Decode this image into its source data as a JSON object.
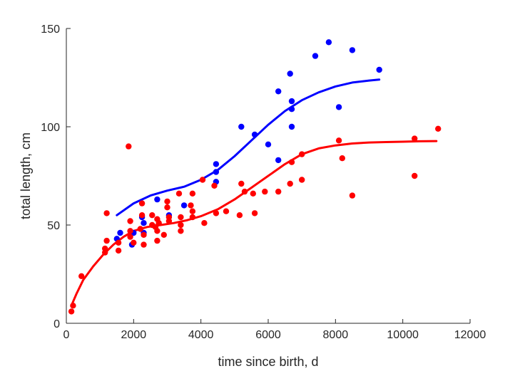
{
  "chart_data": {
    "type": "scatter",
    "title": "",
    "xlabel": "time since birth, d",
    "ylabel": "total length, cm",
    "xlim": [
      0,
      12000
    ],
    "ylim": [
      0,
      150
    ],
    "xticks": [
      0,
      2000,
      4000,
      6000,
      8000,
      10000,
      12000
    ],
    "yticks": [
      0,
      50,
      100,
      150
    ],
    "grid": false,
    "legend": "none",
    "series": [
      {
        "color": "#0000ff",
        "points": [
          [
            1500,
            43
          ],
          [
            1600,
            46
          ],
          [
            1950,
            40
          ],
          [
            2000,
            46
          ],
          [
            2250,
            54
          ],
          [
            2300,
            51
          ],
          [
            2300,
            46
          ],
          [
            2700,
            63
          ],
          [
            3050,
            55
          ],
          [
            3500,
            60
          ],
          [
            4450,
            81
          ],
          [
            4450,
            77
          ],
          [
            4450,
            72
          ],
          [
            5200,
            100
          ],
          [
            5600,
            96
          ],
          [
            6000,
            91
          ],
          [
            6300,
            118
          ],
          [
            6300,
            83
          ],
          [
            6650,
            127
          ],
          [
            6700,
            113
          ],
          [
            6700,
            109
          ],
          [
            6700,
            100
          ],
          [
            7400,
            136
          ],
          [
            7800,
            143
          ],
          [
            8100,
            110
          ],
          [
            8500,
            139
          ],
          [
            9300,
            129
          ]
        ],
        "fit": [
          [
            1500,
            55
          ],
          [
            2000,
            61
          ],
          [
            2500,
            65
          ],
          [
            3000,
            67.5
          ],
          [
            3500,
            69.5
          ],
          [
            4000,
            73
          ],
          [
            4500,
            78
          ],
          [
            5000,
            85
          ],
          [
            5500,
            93
          ],
          [
            6000,
            101
          ],
          [
            6500,
            108
          ],
          [
            7000,
            113.5
          ],
          [
            7500,
            117.5
          ],
          [
            8000,
            120.5
          ],
          [
            8500,
            122.5
          ],
          [
            9000,
            123.5
          ],
          [
            9300,
            124
          ]
        ]
      },
      {
        "color": "#ff0000",
        "points": [
          [
            150,
            6
          ],
          [
            200,
            9
          ],
          [
            450,
            24
          ],
          [
            1150,
            36
          ],
          [
            1150,
            38
          ],
          [
            1200,
            42
          ],
          [
            1200,
            56
          ],
          [
            1550,
            37
          ],
          [
            1550,
            41
          ],
          [
            1850,
            90
          ],
          [
            1900,
            47
          ],
          [
            1900,
            52
          ],
          [
            1900,
            44
          ],
          [
            2000,
            41
          ],
          [
            2200,
            48
          ],
          [
            2250,
            55
          ],
          [
            2250,
            61
          ],
          [
            2300,
            40
          ],
          [
            2300,
            45
          ],
          [
            2550,
            55
          ],
          [
            2550,
            50
          ],
          [
            2650,
            49
          ],
          [
            2700,
            53
          ],
          [
            2700,
            47
          ],
          [
            2700,
            42
          ],
          [
            2750,
            51
          ],
          [
            2900,
            45
          ],
          [
            3000,
            62
          ],
          [
            3000,
            59
          ],
          [
            3050,
            54
          ],
          [
            3050,
            52
          ],
          [
            3350,
            66
          ],
          [
            3400,
            54
          ],
          [
            3400,
            50
          ],
          [
            3400,
            47
          ],
          [
            3700,
            60
          ],
          [
            3750,
            66
          ],
          [
            3750,
            57
          ],
          [
            3750,
            54
          ],
          [
            4050,
            73
          ],
          [
            4100,
            51
          ],
          [
            4400,
            70
          ],
          [
            4450,
            56
          ],
          [
            4750,
            57
          ],
          [
            5150,
            55
          ],
          [
            5200,
            71
          ],
          [
            5300,
            67
          ],
          [
            5550,
            66
          ],
          [
            5600,
            56
          ],
          [
            5900,
            67
          ],
          [
            6300,
            67
          ],
          [
            6650,
            71
          ],
          [
            6700,
            82
          ],
          [
            7000,
            73
          ],
          [
            7000,
            86
          ],
          [
            8100,
            93
          ],
          [
            8200,
            84
          ],
          [
            8500,
            65
          ],
          [
            10350,
            94
          ],
          [
            10350,
            75
          ],
          [
            11050,
            99
          ]
        ],
        "fit": [
          [
            150,
            9
          ],
          [
            300,
            15
          ],
          [
            500,
            22
          ],
          [
            800,
            29
          ],
          [
            1100,
            35
          ],
          [
            1400,
            40
          ],
          [
            1700,
            44
          ],
          [
            2000,
            47
          ],
          [
            2400,
            49
          ],
          [
            2800,
            50
          ],
          [
            3200,
            51
          ],
          [
            3600,
            52.5
          ],
          [
            4000,
            54.5
          ],
          [
            4500,
            58
          ],
          [
            5000,
            63
          ],
          [
            5500,
            69
          ],
          [
            6000,
            75
          ],
          [
            6500,
            81
          ],
          [
            7000,
            86
          ],
          [
            7500,
            89
          ],
          [
            8000,
            90.5
          ],
          [
            8500,
            91.5
          ],
          [
            9000,
            92
          ],
          [
            9500,
            92.2
          ],
          [
            10000,
            92.4
          ],
          [
            10500,
            92.6
          ],
          [
            11000,
            92.7
          ]
        ]
      }
    ]
  }
}
